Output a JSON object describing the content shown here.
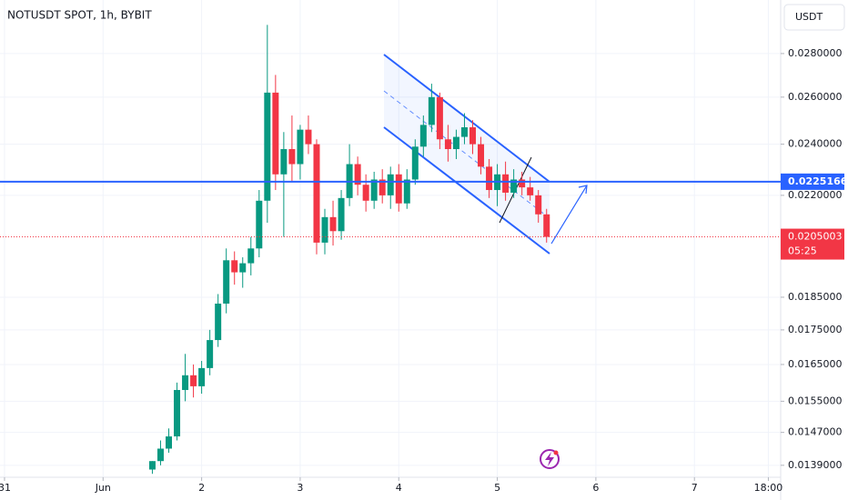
{
  "chart_data": {
    "type": "candlestick",
    "title": "NOTUSDT SPOT, 1h, BYBIT",
    "currency": "USDT",
    "x": [
      36,
      38,
      40,
      42,
      44,
      46,
      48,
      50,
      52,
      54,
      56,
      58,
      60,
      62,
      64,
      66,
      68,
      70,
      72,
      74,
      76,
      78,
      80,
      82,
      84,
      86,
      88,
      90,
      92,
      94,
      96,
      98,
      100,
      102,
      104,
      106,
      108,
      110,
      112,
      114,
      116,
      118,
      120,
      122,
      124,
      126,
      128,
      130,
      132
    ],
    "open": [
      0.0138,
      0.014,
      0.0143,
      0.0146,
      0.0158,
      0.0162,
      0.0159,
      0.0164,
      0.0172,
      0.0183,
      0.0197,
      0.0193,
      0.0196,
      0.0201,
      0.0218,
      0.0262,
      0.0228,
      0.0238,
      0.0232,
      0.0246,
      0.024,
      0.0203,
      0.0212,
      0.0207,
      0.0219,
      0.0232,
      0.0224,
      0.0218,
      0.0226,
      0.022,
      0.0228,
      0.0217,
      0.0226,
      0.0239,
      0.0248,
      0.026,
      0.0242,
      0.0238,
      0.0243,
      0.0247,
      0.024,
      0.0231,
      0.0222,
      0.0228,
      0.0221,
      0.0226,
      0.0223,
      0.022,
      0.0213
    ],
    "high": [
      0.014,
      0.0145,
      0.0148,
      0.016,
      0.0168,
      0.0165,
      0.0166,
      0.0175,
      0.0186,
      0.0201,
      0.02,
      0.0198,
      0.0205,
      0.0222,
      0.0294,
      0.027,
      0.0245,
      0.0252,
      0.0248,
      0.0252,
      0.0242,
      0.0215,
      0.0218,
      0.0222,
      0.024,
      0.0235,
      0.0228,
      0.0229,
      0.023,
      0.0231,
      0.0232,
      0.023,
      0.0242,
      0.0252,
      0.0266,
      0.0262,
      0.0248,
      0.0246,
      0.0253,
      0.025,
      0.0243,
      0.0234,
      0.0232,
      0.0233,
      0.023,
      0.0229,
      0.0227,
      0.0222,
      0.0215
    ],
    "low": [
      0.0137,
      0.0139,
      0.0142,
      0.0145,
      0.0155,
      0.0156,
      0.0157,
      0.0162,
      0.017,
      0.018,
      0.0189,
      0.0188,
      0.0192,
      0.0198,
      0.021,
      0.0222,
      0.0205,
      0.0225,
      0.0226,
      0.0236,
      0.0199,
      0.0199,
      0.0202,
      0.0204,
      0.0216,
      0.022,
      0.0214,
      0.0215,
      0.0217,
      0.0215,
      0.0214,
      0.0215,
      0.0224,
      0.0235,
      0.0245,
      0.0238,
      0.0233,
      0.0234,
      0.024,
      0.0236,
      0.0228,
      0.0219,
      0.0216,
      0.0218,
      0.0219,
      0.022,
      0.0218,
      0.021,
      0.0203
    ],
    "close": [
      0.014,
      0.0143,
      0.0146,
      0.0158,
      0.0162,
      0.0159,
      0.0164,
      0.0172,
      0.0183,
      0.0197,
      0.0193,
      0.0196,
      0.0201,
      0.0218,
      0.0262,
      0.0228,
      0.0238,
      0.0232,
      0.0246,
      0.024,
      0.0203,
      0.0212,
      0.0207,
      0.0219,
      0.0232,
      0.0224,
      0.0218,
      0.0226,
      0.022,
      0.0228,
      0.0217,
      0.0226,
      0.0239,
      0.0248,
      0.026,
      0.0242,
      0.0238,
      0.0243,
      0.0247,
      0.024,
      0.0231,
      0.0222,
      0.0228,
      0.0221,
      0.0226,
      0.0223,
      0.022,
      0.0213,
      0.0205003
    ],
    "up_color": "#089981",
    "down_color": "#f23645",
    "log_scale": true,
    "grid": true,
    "xlim": [
      -1.1,
      189
    ],
    "ylim": [
      0.01362,
      0.03067
    ],
    "xticks": [
      {
        "value": 0,
        "label": "31"
      },
      {
        "value": 24,
        "label": "Jun"
      },
      {
        "value": 48,
        "label": "2"
      },
      {
        "value": 72,
        "label": "3"
      },
      {
        "value": 96,
        "label": "4"
      },
      {
        "value": 120,
        "label": "5"
      },
      {
        "value": 144,
        "label": "6"
      },
      {
        "value": 168,
        "label": "7"
      },
      {
        "value": 186,
        "label": "18:00"
      }
    ],
    "yticks": [
      {
        "value": 0.028,
        "label": "0.0280000"
      },
      {
        "value": 0.026,
        "label": "0.0260000"
      },
      {
        "value": 0.024,
        "label": "0.0240000"
      },
      {
        "value": 0.022,
        "label": "0.0220000"
      },
      {
        "value": 0.0185,
        "label": "0.0185000"
      },
      {
        "value": 0.0175,
        "label": "0.0175000"
      },
      {
        "value": 0.0165,
        "label": "0.0165000"
      },
      {
        "value": 0.0155,
        "label": "0.0155000"
      },
      {
        "value": 0.0147,
        "label": "0.0147000"
      },
      {
        "value": 0.0139,
        "label": "0.0139000"
      }
    ],
    "level_line": {
      "value": 0.0225166,
      "color": "#2962ff"
    },
    "last_price": {
      "value": 0.0205003,
      "countdown": "05:25",
      "color": "#f23645"
    }
  }
}
